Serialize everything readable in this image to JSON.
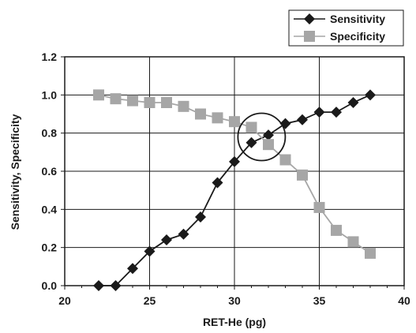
{
  "chart_data": {
    "type": "line",
    "title": "",
    "xlabel": "RET-He (pg)",
    "ylabel": "Sensitivity, Specificity",
    "xlim": [
      20,
      40
    ],
    "ylim": [
      0,
      1.2
    ],
    "xticks": [
      "20",
      "25",
      "30",
      "35",
      "40"
    ],
    "yticks": [
      "0.0",
      "0.2",
      "0.4",
      "0.6",
      "0.8",
      "1.0",
      "1.2"
    ],
    "grid": true,
    "legend_position": "top-right",
    "x": [
      22,
      23,
      24,
      25,
      26,
      27,
      28,
      29,
      30,
      31,
      32,
      33,
      34,
      35,
      36,
      37,
      38
    ],
    "series": [
      {
        "name": "Sensitivity",
        "marker": "diamond",
        "color": "#1a1a1a",
        "values": [
          0.0,
          0.0,
          0.09,
          0.18,
          0.24,
          0.27,
          0.36,
          0.54,
          0.65,
          0.75,
          0.79,
          0.85,
          0.87,
          0.91,
          0.91,
          0.96,
          1.0
        ]
      },
      {
        "name": "Specificity",
        "marker": "square",
        "color": "#a6a6a6",
        "values": [
          1.0,
          0.98,
          0.97,
          0.96,
          0.96,
          0.94,
          0.9,
          0.88,
          0.86,
          0.83,
          0.74,
          0.66,
          0.58,
          0.41,
          0.29,
          0.23,
          0.17
        ]
      }
    ],
    "annotations": [
      {
        "type": "circle",
        "x": 31.6,
        "y": 0.78,
        "label": ""
      }
    ]
  }
}
